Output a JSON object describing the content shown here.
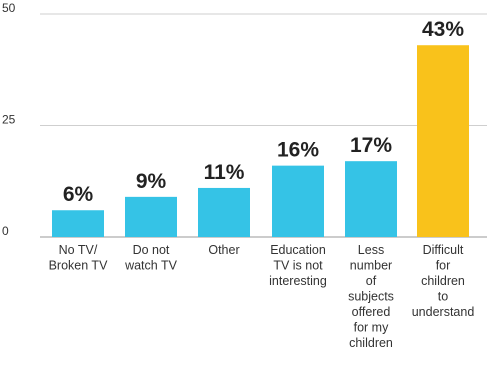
{
  "chart_data": {
    "type": "bar",
    "title": "",
    "xlabel": "",
    "ylabel": "",
    "ylim": [
      0,
      50
    ],
    "yticks": [
      0,
      25,
      50
    ],
    "grid": true,
    "categories": [
      [
        "No TV/",
        "Broken TV"
      ],
      [
        "Do not",
        "watch TV"
      ],
      [
        "Other"
      ],
      [
        "Education",
        "TV is not",
        "interesting"
      ],
      [
        "Less",
        "number",
        "of",
        "subjects",
        "offered",
        "for my",
        "children"
      ],
      [
        "Difficult",
        "for",
        "children",
        "to",
        "understand"
      ]
    ],
    "values": [
      6,
      9,
      11,
      16,
      17,
      43
    ],
    "value_labels": [
      "6%",
      "9%",
      "11%",
      "16%",
      "17%",
      "43%"
    ],
    "colors": {
      "default": "#35c3e6",
      "highlight": "#f9c21b",
      "highlight_index": 5
    }
  }
}
